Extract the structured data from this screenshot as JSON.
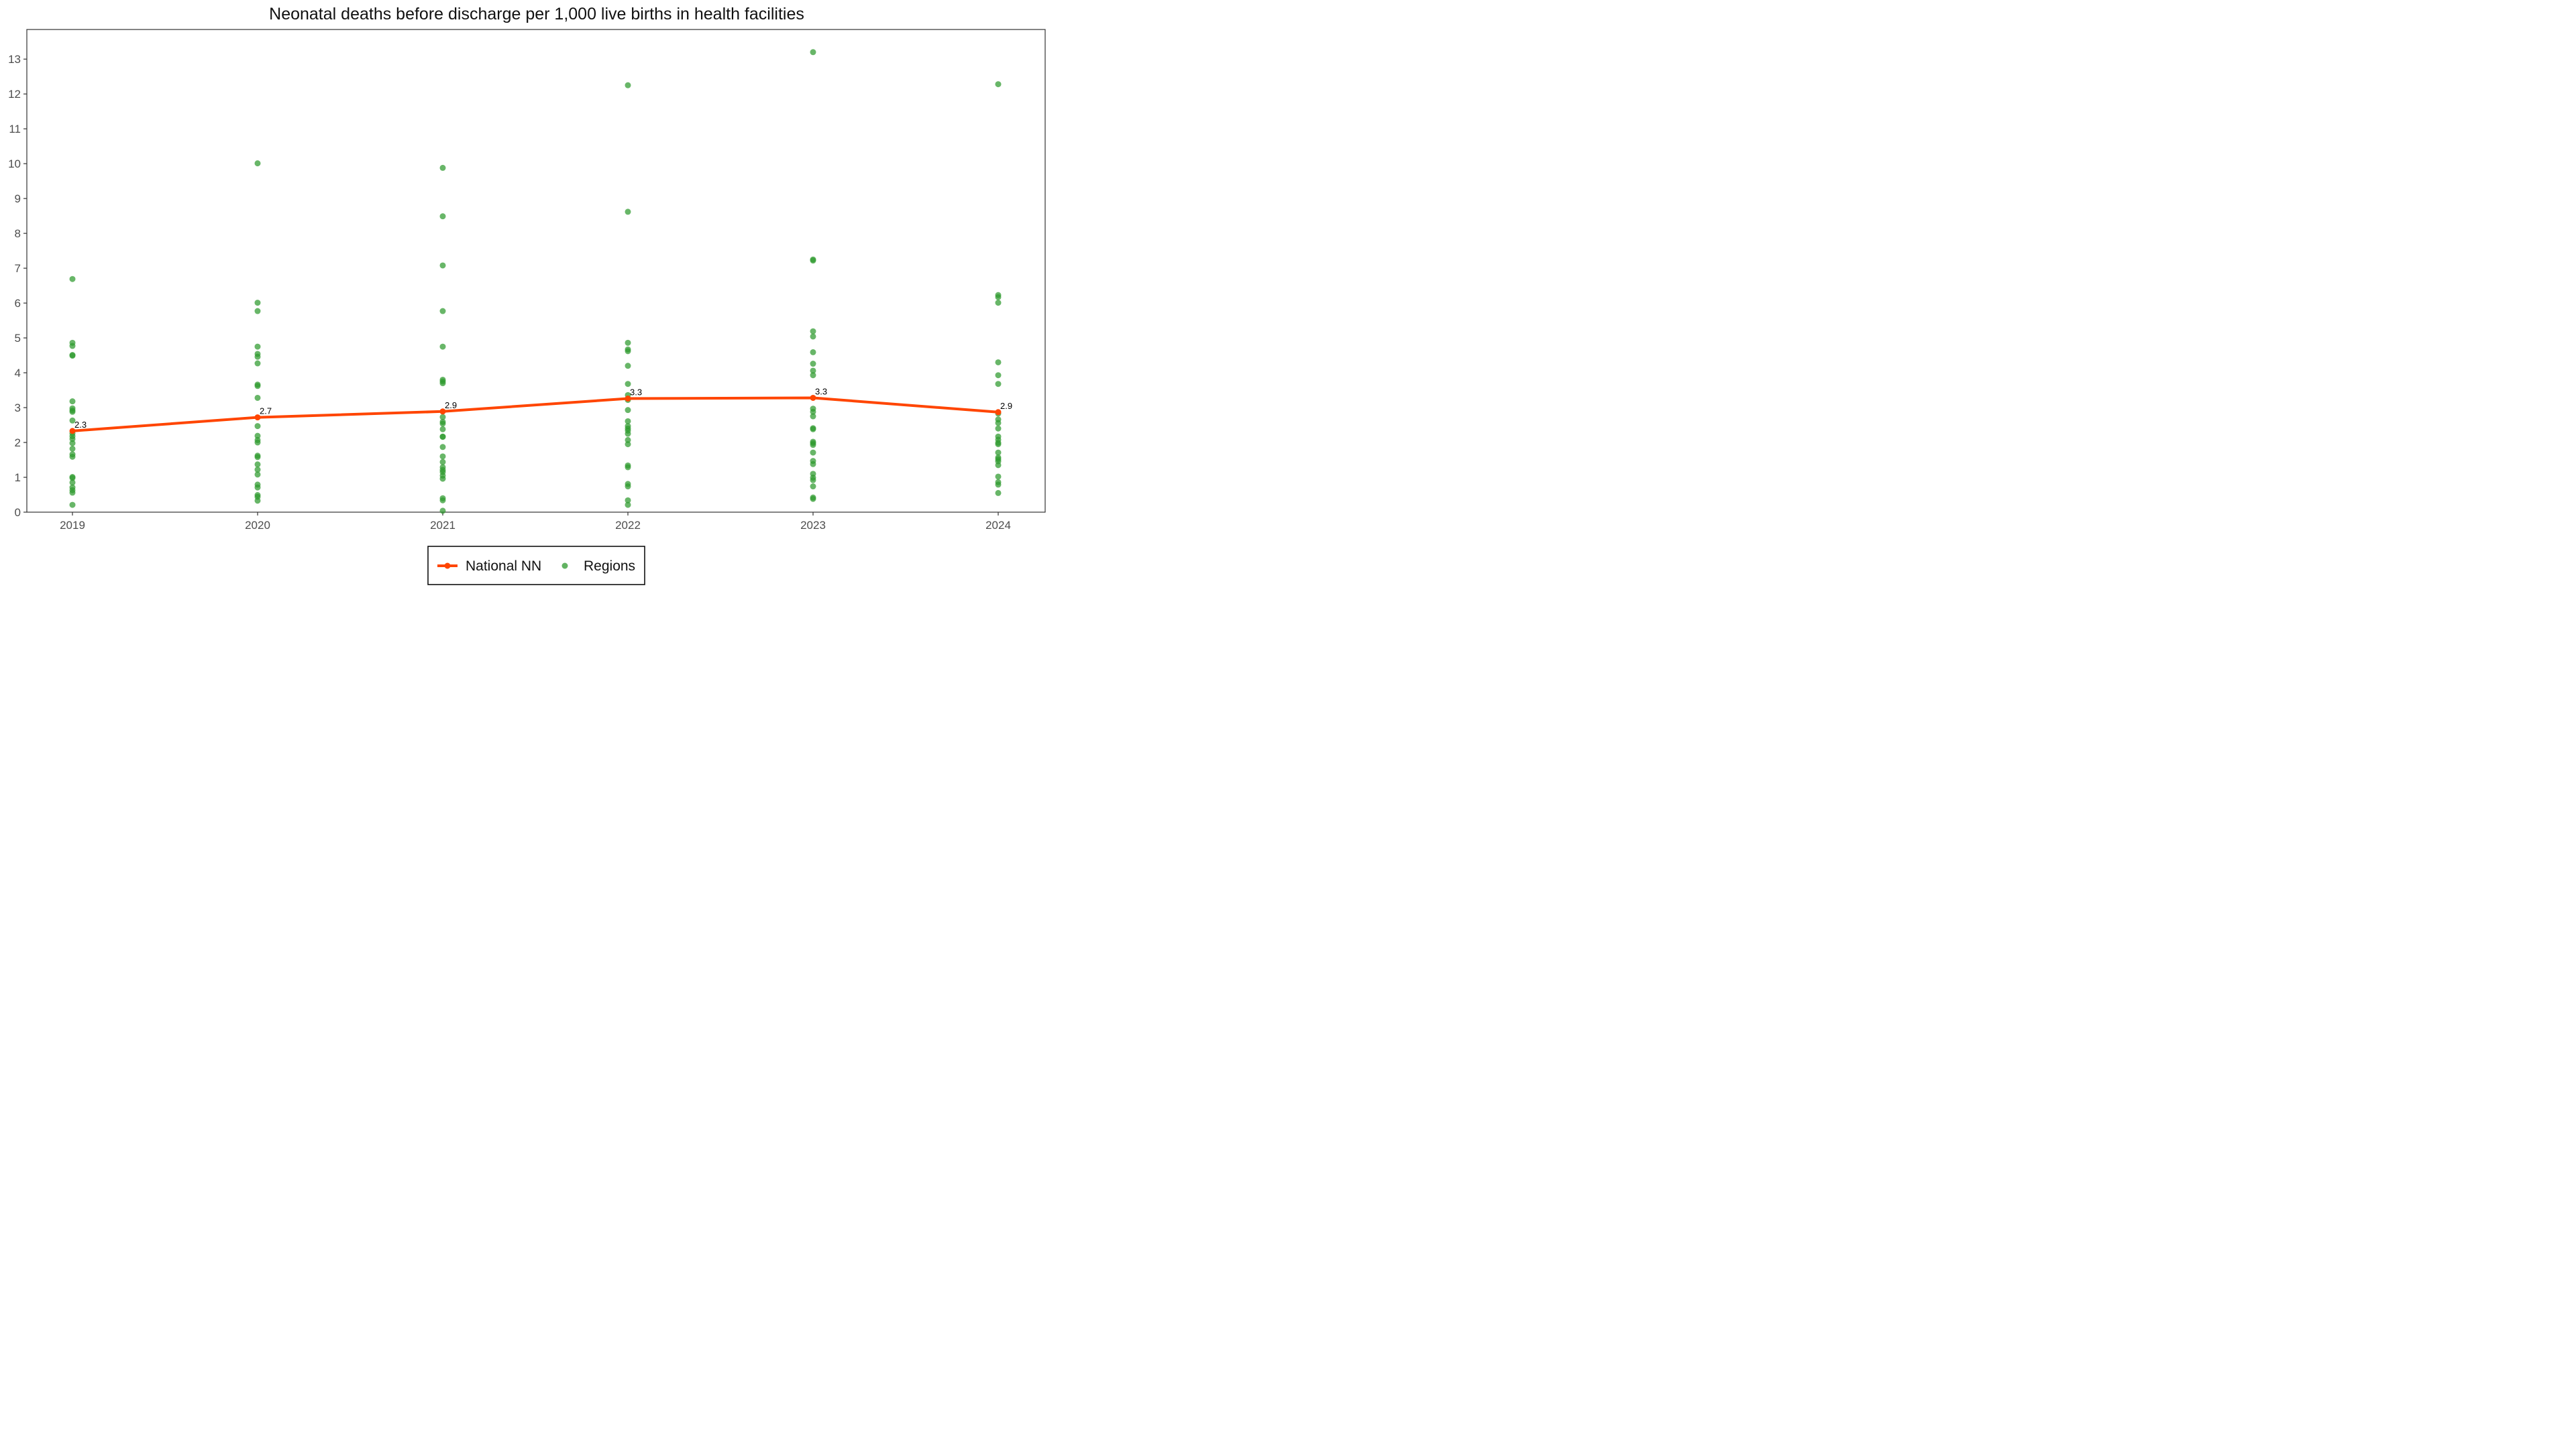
{
  "chart_data": {
    "type": "line",
    "title": "Neonatal deaths before discharge per 1,000 live births in health facilities",
    "xlabel": "",
    "ylabel": "",
    "categories": [
      "2019",
      "2020",
      "2021",
      "2022",
      "2023",
      "2024"
    ],
    "ylim": [
      0,
      13.85
    ],
    "y_ticks": [
      0,
      1,
      2,
      3,
      4,
      5,
      6,
      7,
      8,
      9,
      10,
      11,
      12,
      13
    ],
    "y_tick_labels": [
      "0",
      "1",
      "2",
      "3",
      "4",
      "5",
      "6",
      "7",
      "8",
      "9",
      "10",
      "11",
      "12",
      "13"
    ],
    "grid": false,
    "legend_position": "bottom",
    "series": [
      {
        "name": "National NN",
        "type": "line",
        "color": "#FF4500",
        "values": [
          2.33,
          2.72,
          2.89,
          3.26,
          3.28,
          2.87
        ],
        "labels": [
          "2.3",
          "2.7",
          "2.9",
          "3.3",
          "3.3",
          "2.9"
        ]
      },
      {
        "name": "Regions",
        "type": "scatter",
        "color": "#2E9A2E",
        "points": [
          {
            "x": "2019",
            "y": 6.69
          },
          {
            "x": "2019",
            "y": 4.86
          },
          {
            "x": "2019",
            "y": 4.77
          },
          {
            "x": "2019",
            "y": 4.51
          },
          {
            "x": "2019",
            "y": 4.49
          },
          {
            "x": "2019",
            "y": 3.18
          },
          {
            "x": "2019",
            "y": 2.98
          },
          {
            "x": "2019",
            "y": 2.92
          },
          {
            "x": "2019",
            "y": 2.88
          },
          {
            "x": "2019",
            "y": 2.63
          },
          {
            "x": "2019",
            "y": 2.26
          },
          {
            "x": "2019",
            "y": 2.18
          },
          {
            "x": "2019",
            "y": 2.1
          },
          {
            "x": "2019",
            "y": 1.98
          },
          {
            "x": "2019",
            "y": 1.82
          },
          {
            "x": "2019",
            "y": 1.66
          },
          {
            "x": "2019",
            "y": 1.59
          },
          {
            "x": "2019",
            "y": 1.01
          },
          {
            "x": "2019",
            "y": 0.98
          },
          {
            "x": "2019",
            "y": 0.85
          },
          {
            "x": "2019",
            "y": 0.71
          },
          {
            "x": "2019",
            "y": 0.63
          },
          {
            "x": "2019",
            "y": 0.56
          },
          {
            "x": "2019",
            "y": 0.21
          },
          {
            "x": "2020",
            "y": 10.01
          },
          {
            "x": "2020",
            "y": 6.01
          },
          {
            "x": "2020",
            "y": 5.77
          },
          {
            "x": "2020",
            "y": 4.75
          },
          {
            "x": "2020",
            "y": 4.54
          },
          {
            "x": "2020",
            "y": 4.46
          },
          {
            "x": "2020",
            "y": 4.27
          },
          {
            "x": "2020",
            "y": 3.66
          },
          {
            "x": "2020",
            "y": 3.62
          },
          {
            "x": "2020",
            "y": 3.28
          },
          {
            "x": "2020",
            "y": 2.47
          },
          {
            "x": "2020",
            "y": 2.19
          },
          {
            "x": "2020",
            "y": 2.07
          },
          {
            "x": "2020",
            "y": 2.0
          },
          {
            "x": "2020",
            "y": 1.62
          },
          {
            "x": "2020",
            "y": 1.58
          },
          {
            "x": "2020",
            "y": 1.37
          },
          {
            "x": "2020",
            "y": 1.22
          },
          {
            "x": "2020",
            "y": 1.08
          },
          {
            "x": "2020",
            "y": 0.79
          },
          {
            "x": "2020",
            "y": 0.71
          },
          {
            "x": "2020",
            "y": 0.49
          },
          {
            "x": "2020",
            "y": 0.44
          },
          {
            "x": "2020",
            "y": 0.33
          },
          {
            "x": "2021",
            "y": 9.88
          },
          {
            "x": "2021",
            "y": 8.49
          },
          {
            "x": "2021",
            "y": 7.08
          },
          {
            "x": "2021",
            "y": 5.77
          },
          {
            "x": "2021",
            "y": 4.75
          },
          {
            "x": "2021",
            "y": 3.8
          },
          {
            "x": "2021",
            "y": 3.75
          },
          {
            "x": "2021",
            "y": 3.7
          },
          {
            "x": "2021",
            "y": 2.73
          },
          {
            "x": "2021",
            "y": 2.59
          },
          {
            "x": "2021",
            "y": 2.54
          },
          {
            "x": "2021",
            "y": 2.38
          },
          {
            "x": "2021",
            "y": 2.17
          },
          {
            "x": "2021",
            "y": 2.16
          },
          {
            "x": "2021",
            "y": 1.87
          },
          {
            "x": "2021",
            "y": 1.6
          },
          {
            "x": "2021",
            "y": 1.44
          },
          {
            "x": "2021",
            "y": 1.29
          },
          {
            "x": "2021",
            "y": 1.21
          },
          {
            "x": "2021",
            "y": 1.15
          },
          {
            "x": "2021",
            "y": 1.05
          },
          {
            "x": "2021",
            "y": 0.96
          },
          {
            "x": "2021",
            "y": 0.4
          },
          {
            "x": "2021",
            "y": 0.34
          },
          {
            "x": "2021",
            "y": 0.04
          },
          {
            "x": "2022",
            "y": 12.25
          },
          {
            "x": "2022",
            "y": 8.62
          },
          {
            "x": "2022",
            "y": 4.86
          },
          {
            "x": "2022",
            "y": 4.67
          },
          {
            "x": "2022",
            "y": 4.62
          },
          {
            "x": "2022",
            "y": 4.2
          },
          {
            "x": "2022",
            "y": 3.68
          },
          {
            "x": "2022",
            "y": 3.36
          },
          {
            "x": "2022",
            "y": 3.22
          },
          {
            "x": "2022",
            "y": 2.93
          },
          {
            "x": "2022",
            "y": 2.61
          },
          {
            "x": "2022",
            "y": 2.47
          },
          {
            "x": "2022",
            "y": 2.4
          },
          {
            "x": "2022",
            "y": 2.34
          },
          {
            "x": "2022",
            "y": 2.25
          },
          {
            "x": "2022",
            "y": 2.07
          },
          {
            "x": "2022",
            "y": 1.95
          },
          {
            "x": "2022",
            "y": 1.34
          },
          {
            "x": "2022",
            "y": 1.29
          },
          {
            "x": "2022",
            "y": 0.81
          },
          {
            "x": "2022",
            "y": 0.74
          },
          {
            "x": "2022",
            "y": 0.34
          },
          {
            "x": "2022",
            "y": 0.21
          },
          {
            "x": "2023",
            "y": 13.2
          },
          {
            "x": "2023",
            "y": 7.25
          },
          {
            "x": "2023",
            "y": 7.22
          },
          {
            "x": "2023",
            "y": 5.19
          },
          {
            "x": "2023",
            "y": 5.04
          },
          {
            "x": "2023",
            "y": 4.59
          },
          {
            "x": "2023",
            "y": 4.26
          },
          {
            "x": "2023",
            "y": 4.06
          },
          {
            "x": "2023",
            "y": 3.93
          },
          {
            "x": "2023",
            "y": 2.97
          },
          {
            "x": "2023",
            "y": 2.88
          },
          {
            "x": "2023",
            "y": 2.75
          },
          {
            "x": "2023",
            "y": 2.41
          },
          {
            "x": "2023",
            "y": 2.38
          },
          {
            "x": "2023",
            "y": 2.02
          },
          {
            "x": "2023",
            "y": 1.98
          },
          {
            "x": "2023",
            "y": 1.93
          },
          {
            "x": "2023",
            "y": 1.71
          },
          {
            "x": "2023",
            "y": 1.47
          },
          {
            "x": "2023",
            "y": 1.38
          },
          {
            "x": "2023",
            "y": 1.1
          },
          {
            "x": "2023",
            "y": 0.99
          },
          {
            "x": "2023",
            "y": 0.92
          },
          {
            "x": "2023",
            "y": 0.74
          },
          {
            "x": "2023",
            "y": 0.42
          },
          {
            "x": "2023",
            "y": 0.38
          },
          {
            "x": "2024",
            "y": 12.28
          },
          {
            "x": "2024",
            "y": 6.23
          },
          {
            "x": "2024",
            "y": 6.17
          },
          {
            "x": "2024",
            "y": 6.01
          },
          {
            "x": "2024",
            "y": 4.3
          },
          {
            "x": "2024",
            "y": 3.93
          },
          {
            "x": "2024",
            "y": 3.68
          },
          {
            "x": "2024",
            "y": 2.83
          },
          {
            "x": "2024",
            "y": 2.66
          },
          {
            "x": "2024",
            "y": 2.56
          },
          {
            "x": "2024",
            "y": 2.4
          },
          {
            "x": "2024",
            "y": 2.17
          },
          {
            "x": "2024",
            "y": 2.08
          },
          {
            "x": "2024",
            "y": 1.99
          },
          {
            "x": "2024",
            "y": 1.95
          },
          {
            "x": "2024",
            "y": 1.71
          },
          {
            "x": "2024",
            "y": 1.57
          },
          {
            "x": "2024",
            "y": 1.52
          },
          {
            "x": "2024",
            "y": 1.46
          },
          {
            "x": "2024",
            "y": 1.35
          },
          {
            "x": "2024",
            "y": 1.02
          },
          {
            "x": "2024",
            "y": 0.86
          },
          {
            "x": "2024",
            "y": 0.79
          },
          {
            "x": "2024",
            "y": 0.55
          }
        ]
      }
    ]
  }
}
